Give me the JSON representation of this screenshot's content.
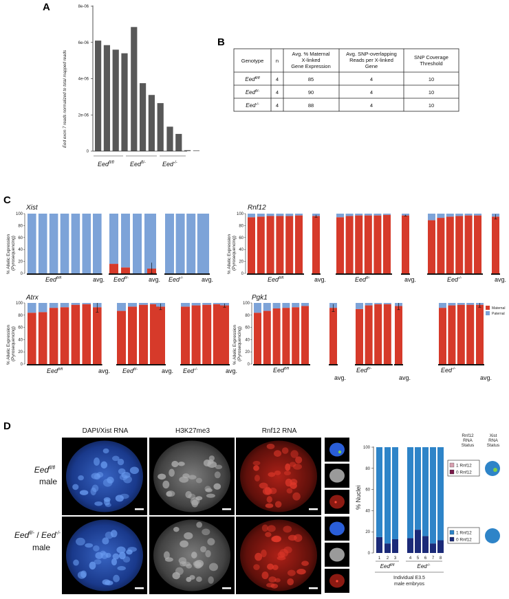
{
  "panels": {
    "a": "A",
    "b": "B",
    "c": "C",
    "d": "D"
  },
  "panel_a": {
    "ylabel": "Eed exon 7 reads normalized to total mapped reads",
    "ytick_labels": [
      "0",
      "2e-06",
      "4e-06",
      "6e-06",
      "8e-06"
    ],
    "group_labels": [
      "Eedfl/fl",
      "Eedfl/-",
      "Eed-/-"
    ],
    "group_labels_base": [
      "Eed",
      "Eed",
      "Eed"
    ],
    "group_labels_sup": [
      "fl/fl",
      "fl/-",
      "-/-"
    ]
  },
  "panel_b": {
    "headers": [
      "Genotype",
      "n",
      "Avg. % Maternal X-linked Gene Expression",
      "Avg. SNP-overlapping Reads per X-linked Gene",
      "SNP Coverage Threshold"
    ],
    "rows": [
      {
        "genotype": "Eed",
        "sup": "fl/fl",
        "n": "4",
        "maternal": "85",
        "reads": "4",
        "threshold": "10"
      },
      {
        "genotype": "Eed",
        "sup": "fl/-",
        "n": "4",
        "maternal": "90",
        "reads": "4",
        "threshold": "10"
      },
      {
        "genotype": "Eed",
        "sup": "-/-",
        "n": "4",
        "maternal": "88",
        "reads": "4",
        "threshold": "10"
      }
    ]
  },
  "panel_c": {
    "ylabel_line1": "% Allelic Expression",
    "ylabel_line2": "(Pyrosequencing)",
    "ytick_labels": [
      "0",
      "20",
      "40",
      "60",
      "80",
      "100"
    ],
    "avg_label": "avg.",
    "legend": [
      {
        "label": "Maternal",
        "color": "#d63a2a"
      },
      {
        "label": "Paternal",
        "color": "#7da3d8"
      }
    ],
    "genes": [
      "Xist",
      "Rnf12",
      "Atrx",
      "Pgk1"
    ],
    "genotype_base": "Eed",
    "genotype_sups": [
      "fl/fl",
      "fl/-",
      "-/-"
    ]
  },
  "panel_d": {
    "col_headers": [
      "DAPI/Xist RNA",
      "H3K27me3",
      "Rnf12 RNA"
    ],
    "row1_label": {
      "base": "Eed",
      "sup": "fl/fl",
      "line2": "male"
    },
    "row2_label": {
      "base1": "Eed",
      "sup1": "fl/-",
      "sep": " / ",
      "base2": "Eed",
      "sup2": "-/-",
      "line2": "male"
    },
    "status_headers": [
      [
        "Rnf12",
        "RNA",
        "Status"
      ],
      [
        "Xist",
        "RNA",
        "Status"
      ]
    ],
    "legend_top": [
      "1 Rnf12",
      "0 Rnf12"
    ],
    "legend_bottom": [
      "1 Rnf12",
      "0 Rnf12"
    ],
    "xlabel_line1": "Individual E3.5",
    "xlabel_line2": "male embryos",
    "ylabel": "% Nuclei",
    "ytick_labels": [
      "0",
      "20",
      "40",
      "60",
      "80",
      "100"
    ],
    "group_labels": [
      {
        "base": "Eed",
        "sup": "fl/fl"
      },
      {
        "base": "Eed",
        "sup": "-/-"
      }
    ]
  },
  "chart_data": [
    {
      "type": "bar",
      "panel": "A",
      "ylabel": "Eed exon 7 reads normalized to total mapped reads",
      "ylim": [
        0,
        8e-06
      ],
      "groups": [
        "Eedfl/fl",
        "Eedfl/-",
        "Eed-/-"
      ],
      "group_sizes": [
        4,
        4,
        4
      ],
      "values": [
        6.1e-06,
        5.85e-06,
        5.6e-06,
        5.4e-06,
        6.85e-06,
        3.75e-06,
        3.1e-06,
        2.65e-06,
        1.35e-06,
        9.5e-07,
        5e-08,
        3e-08
      ]
    },
    {
      "type": "bar",
      "panel": "C",
      "gene": "Xist",
      "stacked": true,
      "ylim": [
        0,
        100
      ],
      "groups": [
        {
          "genotype": "Eedfl/fl",
          "maternal": [
            0,
            0,
            0,
            0,
            0,
            0
          ],
          "avg_maternal": 0
        },
        {
          "genotype": "Eedfl/-",
          "maternal": [
            16,
            10,
            0,
            0
          ],
          "avg_maternal": 8,
          "avg_err": 10
        },
        {
          "genotype": "Eed-/-",
          "maternal": [
            0,
            0,
            0,
            0
          ],
          "avg_maternal": 0
        }
      ]
    },
    {
      "type": "bar",
      "panel": "C",
      "gene": "Rnf12",
      "stacked": true,
      "ylim": [
        0,
        100
      ],
      "groups": [
        {
          "genotype": "Eedfl/fl",
          "maternal": [
            94,
            95,
            96,
            96,
            96,
            97
          ],
          "avg_maternal": 96,
          "avg_err": 2
        },
        {
          "genotype": "Eedfl/-",
          "maternal": [
            94,
            96,
            97,
            97,
            97,
            98
          ],
          "avg_maternal": 97,
          "avg_err": 1
        },
        {
          "genotype": "Eed-/-",
          "maternal": [
            89,
            93,
            95,
            96,
            97,
            97
          ],
          "avg_maternal": 95,
          "avg_err": 4
        }
      ]
    },
    {
      "type": "bar",
      "panel": "C",
      "gene": "Atrx",
      "stacked": true,
      "ylim": [
        0,
        100
      ],
      "groups": [
        {
          "genotype": "Eedfl/fl",
          "maternal": [
            84,
            85,
            92,
            93,
            97,
            98
          ],
          "avg_maternal": 93,
          "avg_err": 8
        },
        {
          "genotype": "Eedfl/-",
          "maternal": [
            87,
            94,
            97,
            98
          ],
          "avg_maternal": 94,
          "avg_err": 5
        },
        {
          "genotype": "Eed-/-",
          "maternal": [
            94,
            96,
            97,
            98
          ],
          "avg_maternal": 96,
          "avg_err": 3
        }
      ]
    },
    {
      "type": "bar",
      "panel": "C",
      "gene": "Pgk1",
      "stacked": true,
      "ylim": [
        0,
        100
      ],
      "groups": [
        {
          "genotype": "Eedfl/fl",
          "maternal": [
            84,
            87,
            91,
            92,
            93,
            95
          ],
          "avg_maternal": 92,
          "avg_err": 6
        },
        {
          "genotype": "Eedfl/-",
          "maternal": [
            90,
            96,
            98,
            98
          ],
          "avg_maternal": 95,
          "avg_err": 6
        },
        {
          "genotype": "Eed-/-",
          "maternal": [
            92,
            96,
            97,
            97
          ],
          "avg_maternal": 97,
          "avg_err": 4
        }
      ]
    },
    {
      "type": "bar",
      "panel": "D",
      "stacked": true,
      "ylabel": "% Nuclei",
      "ylim": [
        0,
        100
      ],
      "categories": [
        "1",
        "2",
        "3",
        "4",
        "5",
        "6",
        "7",
        "8"
      ],
      "groups": [
        "Eedfl/fl",
        "Eedfl/fl",
        "Eedfl/fl",
        "Eed-/-",
        "Eed-/-",
        "Eed-/-",
        "Eed-/-",
        "Eed-/-"
      ],
      "series": [
        {
          "name": "0 Rnf12",
          "values": [
            15,
            9,
            13,
            14,
            22,
            16,
            9,
            12
          ]
        },
        {
          "name": "1 Rnf12",
          "values": [
            85,
            91,
            87,
            86,
            78,
            84,
            91,
            88
          ]
        }
      ]
    }
  ]
}
